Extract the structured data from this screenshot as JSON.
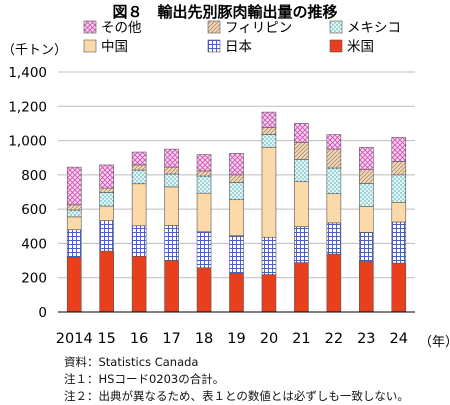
{
  "chart_data": {
    "type": "stacked-bar",
    "title": "図８　輸出先別豚肉輸出量の推移",
    "ylabel": "（千トン）",
    "xunit": "（年）",
    "categories": [
      "2014",
      "15",
      "16",
      "17",
      "18",
      "19",
      "20",
      "21",
      "22",
      "23",
      "24"
    ],
    "ylim": [
      0,
      1400
    ],
    "yticks": [
      "0",
      "200",
      "400",
      "600",
      "800",
      "1,000",
      "1,200",
      "1,400"
    ],
    "series": [
      {
        "name": "米国",
        "color": "#e8401c",
        "pattern": "solid",
        "values": [
          320,
          355,
          325,
          300,
          258,
          225,
          218,
          288,
          338,
          295,
          285
        ]
      },
      {
        "name": "日本",
        "color": "#6b7fd6",
        "pattern": "grid",
        "values": [
          160,
          178,
          178,
          205,
          210,
          220,
          218,
          210,
          182,
          170,
          240
        ]
      },
      {
        "name": "中国",
        "color": "#fcd9a8",
        "pattern": "solid",
        "values": [
          75,
          85,
          245,
          225,
          225,
          210,
          525,
          262,
          170,
          150,
          115
        ]
      },
      {
        "name": "メキシコ",
        "color": "#cfeff0",
        "pattern": "dots",
        "values": [
          40,
          80,
          80,
          75,
          100,
          100,
          75,
          130,
          150,
          135,
          160
        ]
      },
      {
        "name": "フィリピン",
        "color": "#e5c7a8",
        "pattern": "diag",
        "values": [
          30,
          25,
          30,
          40,
          30,
          45,
          40,
          100,
          110,
          80,
          78
        ]
      },
      {
        "name": "その他",
        "color": "#e88ad0",
        "pattern": "cross",
        "values": [
          220,
          135,
          75,
          105,
          95,
          125,
          90,
          110,
          85,
          130,
          140
        ]
      }
    ]
  },
  "notes": [
    "資料：Statistics Canada",
    "注１：HSコード0203の合計。",
    "注２：出典が異なるため、表１との数値とは必ずしも一致しない。"
  ]
}
